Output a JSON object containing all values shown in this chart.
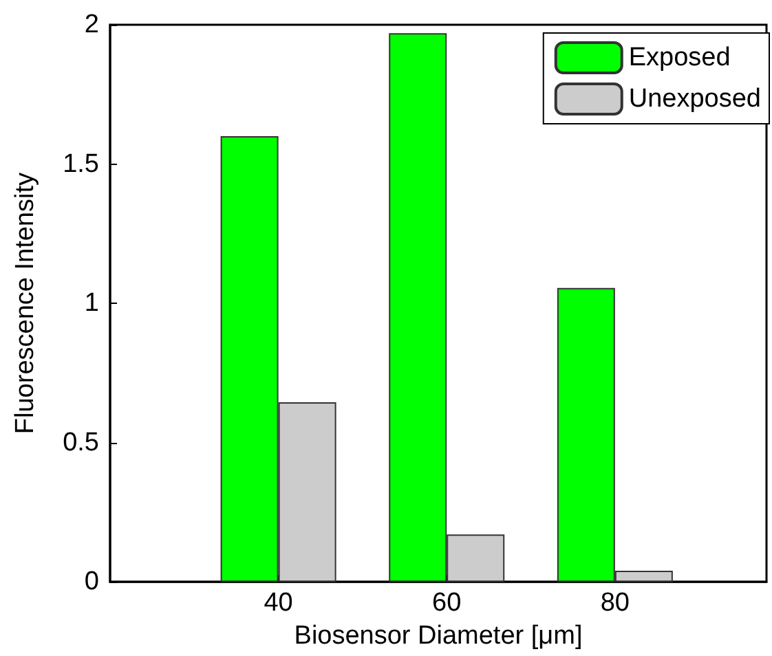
{
  "chart_data": {
    "type": "bar",
    "xlabel": "Biosensor Diameter [μm]",
    "ylabel": "Fluorescence Intensity",
    "x": [
      40,
      60,
      80
    ],
    "xlim": [
      20,
      98
    ],
    "xticks": [
      40,
      60,
      80
    ],
    "ylim": [
      0,
      2
    ],
    "yticks": [
      0,
      0.5,
      1,
      1.5,
      2
    ],
    "series": [
      {
        "name": "Exposed",
        "color": "#00ff00",
        "values": [
          1.6,
          1.97,
          1.055
        ]
      },
      {
        "name": "Unexposed",
        "color": "#cccccc",
        "values": [
          0.645,
          0.17,
          0.04
        ]
      }
    ],
    "legend": "top right",
    "grid": false
  }
}
